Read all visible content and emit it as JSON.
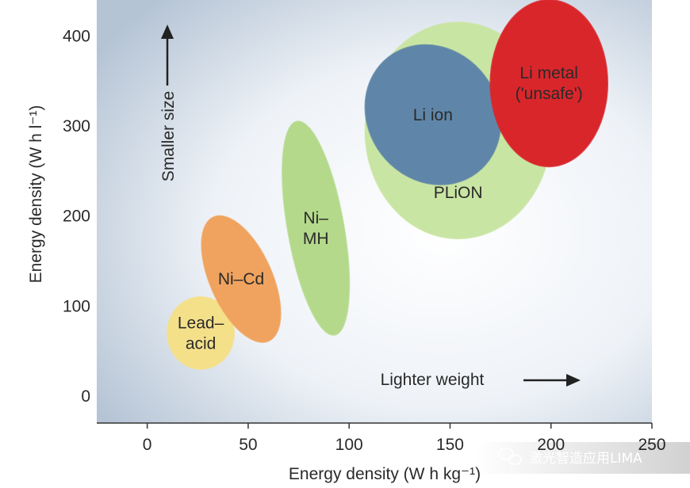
{
  "chart_data": {
    "type": "scatter",
    "xlabel": "Energy density (W h kg⁻¹)",
    "ylabel": "Energy density (W h l⁻¹)",
    "xlim": [
      -25,
      250
    ],
    "ylim": [
      -30,
      440
    ],
    "x_ticks": [
      0,
      50,
      100,
      150,
      200,
      250
    ],
    "y_ticks": [
      0,
      100,
      200,
      300,
      400
    ],
    "x_tick_labels": [
      "0",
      "50",
      "100",
      "150",
      "200",
      "250"
    ],
    "y_tick_labels": [
      "0",
      "100",
      "200",
      "300",
      "400"
    ],
    "regions": [
      {
        "name": "PLiON",
        "lines": [
          "PLiON"
        ],
        "x_range": [
          108,
          200
        ],
        "y_range": [
          175,
          415
        ],
        "color": "#c9e5a3"
      },
      {
        "name": "Lead–acid",
        "lines": [
          "Lead–",
          "acid"
        ],
        "x_range": [
          10,
          43
        ],
        "y_range": [
          30,
          110
        ],
        "color": "#f5e08a"
      },
      {
        "name": "Ni–Cd",
        "lines": [
          "Ni–Cd"
        ],
        "x_range": [
          27,
          66
        ],
        "y_range": [
          60,
          200
        ],
        "color": "#f0a35e"
      },
      {
        "name": "Ni–MH",
        "lines": [
          "Ni–",
          "MH"
        ],
        "x_range": [
          67,
          100
        ],
        "y_range": [
          68,
          305
        ],
        "color": "#b4d98b"
      },
      {
        "name": "Li ion",
        "lines": [
          "Li ion"
        ],
        "x_range": [
          108,
          175
        ],
        "y_range": [
          235,
          390
        ],
        "color": "#5f86a8"
      },
      {
        "name": "Li metal ('unsafe')",
        "lines": [
          "Li metal",
          "('unsafe')"
        ],
        "x_range": [
          170,
          228
        ],
        "y_range": [
          255,
          440
        ],
        "color": "#d9262b"
      }
    ],
    "annotations": [
      {
        "text": "Smaller size",
        "direction": "up"
      },
      {
        "text": "Lighter weight",
        "direction": "right"
      }
    ]
  },
  "watermark": "激光智造应用LIMA"
}
